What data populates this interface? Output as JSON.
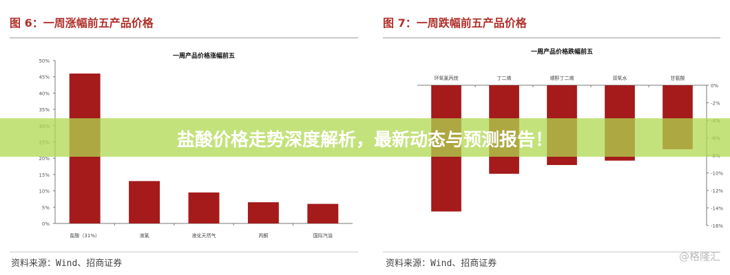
{
  "figures": [
    {
      "label": "图 6：一周涨幅前五产品价格",
      "source": "资料来源：Wind、招商证券"
    },
    {
      "label": "图 7：一周跌幅前五产品价格",
      "source": "资料来源：Wind、招商证券"
    }
  ],
  "banner": "盐酸价格走势深度解析，最新动态与预测报告！",
  "watermark": "@格隆汇",
  "chart_data": [
    {
      "type": "bar",
      "title": "一周产品价格涨幅前五",
      "categories": [
        "盐酸（31%）",
        "液氯",
        "液化天然气",
        "丙酮",
        "国际汽油"
      ],
      "values": [
        46,
        13,
        9.5,
        6.5,
        6
      ],
      "ylim": [
        0,
        50
      ],
      "yticks": [
        0,
        5,
        10,
        15,
        20,
        25,
        30,
        35,
        40,
        45,
        50
      ],
      "ytick_labels": [
        "0%",
        "5%",
        "10%",
        "15%",
        "20%",
        "25%",
        "30%",
        "35%",
        "40%",
        "45%",
        "50%"
      ],
      "color": "#a51a1a",
      "grid": false
    },
    {
      "type": "bar",
      "title": "一周产品价格跌幅前五",
      "categories": [
        "环氧氯丙烷",
        "丁二烯",
        "顺酐丁二烯",
        "双氧水",
        "甘氨酸"
      ],
      "values": [
        -14.4,
        -10.1,
        -9.1,
        -8.6,
        -7.3
      ],
      "ylim": [
        -16,
        0
      ],
      "yticks": [
        0,
        -2,
        -4,
        -6,
        -8,
        -10,
        -12,
        -14,
        -16
      ],
      "ytick_labels": [
        "0%",
        "-2%",
        "-4%",
        "-6%",
        "-8%",
        "-10%",
        "-12%",
        "-14%",
        "-16%"
      ],
      "color": "#a51a1a",
      "grid": false
    }
  ]
}
